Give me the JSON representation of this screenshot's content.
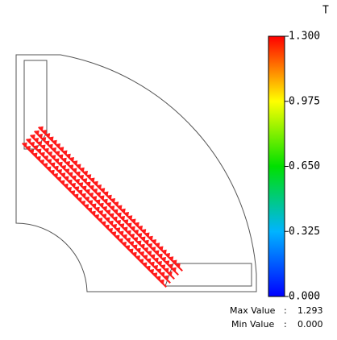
{
  "colorbar": {
    "unit": "T",
    "lim": [
      0,
      1.3
    ],
    "ticks": [
      {
        "value": 1.3,
        "label": "1.300"
      },
      {
        "value": 0.975,
        "label": "0.975"
      },
      {
        "value": 0.65,
        "label": "0.650"
      },
      {
        "value": 0.325,
        "label": "0.325"
      },
      {
        "value": 0,
        "label": "0.000"
      }
    ]
  },
  "stats": {
    "max_label": "Max Value",
    "max_value": "1.293",
    "min_label": "Min Value",
    "min_value": "0.000"
  }
}
